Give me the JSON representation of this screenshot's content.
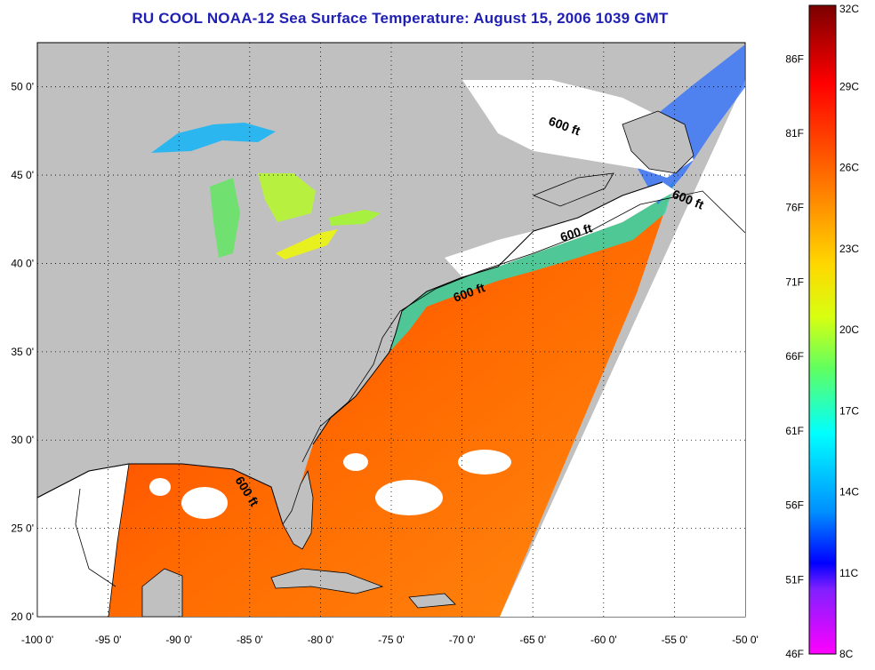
{
  "title": "RU COOL  NOAA-12  Sea Surface Temperature:  August 15, 2006 1039 GMT",
  "map": {
    "lon_labels": [
      "-100 0'",
      "-95 0'",
      "-90 0'",
      "-85 0'",
      "-80 0'",
      "-75 0'",
      "-70 0'",
      "-65 0'",
      "-60 0'",
      "-55 0'",
      "-50 0'"
    ],
    "lat_labels": [
      "50 0'",
      "45 0'",
      "40 0'",
      "35 0'",
      "30 0'",
      "25 0'",
      "20 0'"
    ],
    "lon_range": [
      -100,
      -50
    ],
    "lat_range": [
      20,
      52.5
    ],
    "contour_labels": [
      "600 ft",
      "600 ft",
      "600 ft",
      "600 ft",
      "600 ft"
    ],
    "colors": {
      "land": "#c0c0c0",
      "no_data": "#ffffff",
      "coastline": "#000000"
    }
  },
  "colorbar": {
    "fahrenheit_labels": [
      "86F",
      "81F",
      "76F",
      "71F",
      "66F",
      "61F",
      "56F",
      "51F",
      "46F"
    ],
    "celsius_labels": [
      "32C",
      "29C",
      "26C",
      "23C",
      "20C",
      "17C",
      "14C",
      "11C",
      "8C"
    ],
    "range_c": [
      8,
      32
    ],
    "range_f": [
      46,
      89.6
    ]
  }
}
